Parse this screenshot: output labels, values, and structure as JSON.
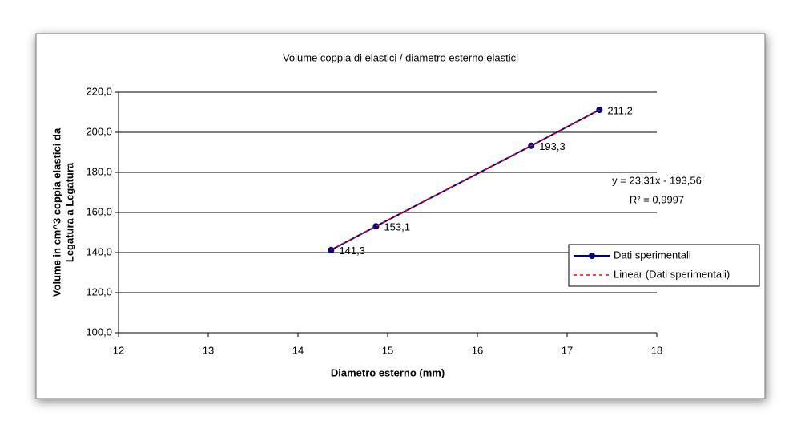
{
  "chart_data": {
    "type": "scatter-line",
    "title": "Volume coppia di elastici / diametro esterno elastici",
    "xlabel": "Diametro esterno (mm)",
    "ylabel": [
      "Volume in cm^3  coppia elastici da",
      "Legatura a Legatura"
    ],
    "series": [
      {
        "name": "Dati sperimentali",
        "color": "#000080",
        "style": "solid-markers",
        "x": [
          14.37,
          14.87,
          16.6,
          17.36
        ],
        "values": [
          141.3,
          153.1,
          193.3,
          211.2
        ],
        "value_labels": [
          "141,3",
          "153,1",
          "193,3",
          "211,2"
        ]
      },
      {
        "name": "Linear (Dati sperimentali)",
        "color": "#ff0000",
        "style": "dashed",
        "x": [
          14.37,
          17.36
        ],
        "values": [
          141.4,
          211.1
        ]
      }
    ],
    "annotations": [
      "y = 23,31x - 193,56",
      "R² = 0,9997"
    ],
    "xlim": [
      12,
      18
    ],
    "xticks": [
      12,
      13,
      14,
      15,
      16,
      17,
      18
    ],
    "ylim": [
      100,
      220
    ],
    "yticks": [
      {
        "value": 100,
        "label": "100,0"
      },
      {
        "value": 120,
        "label": "120,0"
      },
      {
        "value": 140,
        "label": "140,0"
      },
      {
        "value": 160,
        "label": "160,0"
      },
      {
        "value": 180,
        "label": "180,0"
      },
      {
        "value": 200,
        "label": "200,0"
      },
      {
        "value": 220,
        "label": "220,0"
      }
    ],
    "grid": true,
    "legend": "right"
  }
}
